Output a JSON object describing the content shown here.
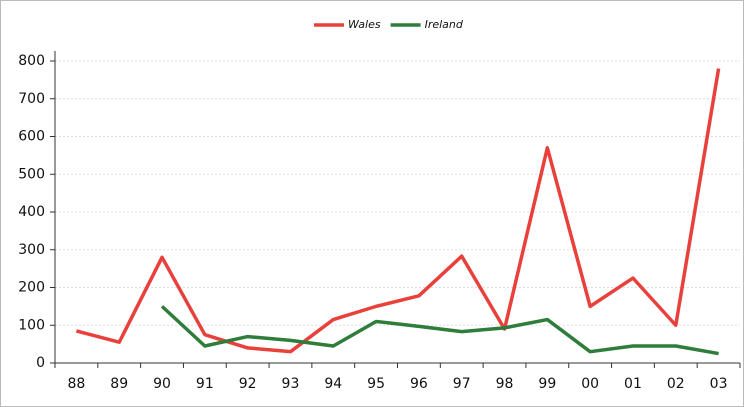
{
  "chart_data": {
    "type": "line",
    "categories": [
      "88",
      "89",
      "90",
      "91",
      "92",
      "93",
      "94",
      "95",
      "96",
      "97",
      "98",
      "99",
      "00",
      "01",
      "02",
      "03"
    ],
    "series": [
      {
        "name": "Wales",
        "color": "#e8413c",
        "values": [
          85,
          55,
          280,
          75,
          40,
          30,
          115,
          150,
          178,
          283,
          90,
          570,
          150,
          225,
          100,
          780
        ]
      },
      {
        "name": "Ireland",
        "color": "#2e7d3a",
        "values": [
          null,
          null,
          150,
          45,
          70,
          60,
          45,
          110,
          97,
          83,
          93,
          115,
          30,
          45,
          45,
          25
        ]
      }
    ],
    "ylim": [
      0,
      800
    ],
    "yticks": [
      0,
      100,
      200,
      300,
      400,
      500,
      600,
      700,
      800
    ],
    "grid": true,
    "legend": "top"
  }
}
